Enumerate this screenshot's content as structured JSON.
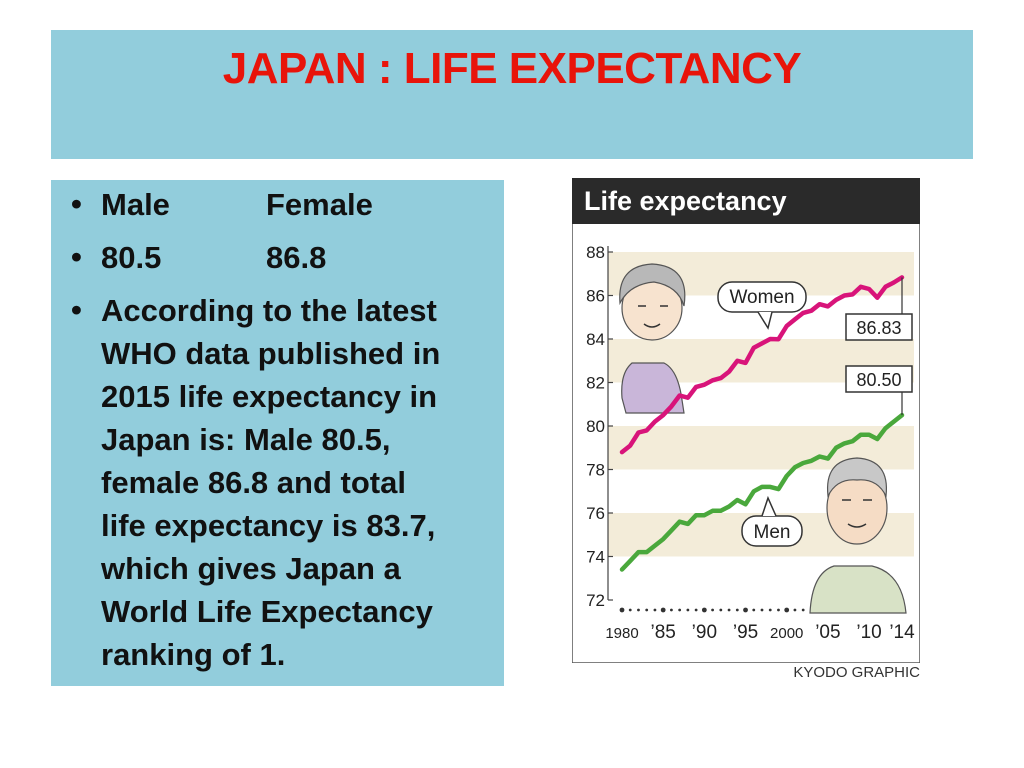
{
  "slide": {
    "title": "JAPAN : LIFE EXPECTANCY",
    "bullets": {
      "header_male": "Male",
      "header_female": "Female",
      "value_male": "80.5",
      "value_female": "86.8",
      "paragraph_lines": [
        "According to the latest",
        "WHO data published in",
        "2015 life expectancy in",
        "Japan is: Male 80.5,",
        "female 86.8 and total",
        "life expectancy is 83.7,",
        "which gives Japan a",
        "World Life Expectancy",
        "ranking of 1."
      ]
    },
    "credit": "KYODO GRAPHIC",
    "colors": {
      "title_bg": "#92cddc",
      "title_text": "#e8140a",
      "women_line": "#d8147a",
      "men_line": "#4aa83c",
      "chart_header_bg": "#2a2a2a"
    }
  },
  "chart_data": {
    "type": "line",
    "title": "Life expectancy",
    "ylim": [
      72,
      88
    ],
    "y_ticks": [
      "72",
      "74",
      "76",
      "78",
      "80",
      "82",
      "84",
      "86",
      "88"
    ],
    "x_ticks": [
      "1980",
      "’85",
      "’90",
      "’95",
      "2000",
      "’05",
      "’10",
      "’14"
    ],
    "x": [
      1980,
      1981,
      1982,
      1983,
      1984,
      1985,
      1986,
      1987,
      1988,
      1989,
      1990,
      1991,
      1992,
      1993,
      1994,
      1995,
      1996,
      1997,
      1998,
      1999,
      2000,
      2001,
      2002,
      2003,
      2004,
      2005,
      2006,
      2007,
      2008,
      2009,
      2010,
      2011,
      2012,
      2013,
      2014
    ],
    "series": [
      {
        "name": "Women",
        "end_label": "86.83",
        "values": [
          78.8,
          79.1,
          79.7,
          79.8,
          80.2,
          80.5,
          80.9,
          81.4,
          81.3,
          81.8,
          81.9,
          82.1,
          82.2,
          82.5,
          83.0,
          82.9,
          83.6,
          83.8,
          84.0,
          83.99,
          84.6,
          84.9,
          85.2,
          85.3,
          85.6,
          85.5,
          85.8,
          86.0,
          86.05,
          86.4,
          86.3,
          85.9,
          86.4,
          86.6,
          86.83
        ]
      },
      {
        "name": "Men",
        "end_label": "80.50",
        "values": [
          73.4,
          73.8,
          74.2,
          74.2,
          74.5,
          74.8,
          75.2,
          75.6,
          75.5,
          75.9,
          75.9,
          76.1,
          76.1,
          76.3,
          76.6,
          76.4,
          77.0,
          77.2,
          77.2,
          77.1,
          77.7,
          78.1,
          78.3,
          78.4,
          78.6,
          78.5,
          79.0,
          79.2,
          79.3,
          79.6,
          79.6,
          79.4,
          79.9,
          80.2,
          80.5
        ]
      }
    ]
  }
}
